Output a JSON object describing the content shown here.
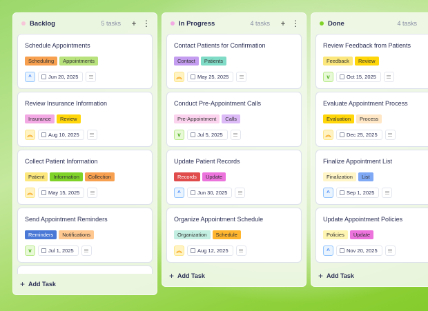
{
  "add_task_label": "Add Task",
  "priority_styles": {
    "high": {
      "icon": "double-chevron-up-icon",
      "glyph": "︽",
      "bg": "#fff3c4",
      "border": "#fde68a",
      "color": "#f59e0b"
    },
    "medium": {
      "icon": "chevron-up-icon",
      "glyph": "^",
      "bg": "#eaf4ff",
      "border": "#93c5fd",
      "color": "#3b82f6"
    },
    "low": {
      "icon": "chevron-down-icon",
      "glyph": "v",
      "bg": "#e8f9d8",
      "border": "#b8ea8a",
      "color": "#4caf1a"
    }
  },
  "columns": [
    {
      "title": "Backlog",
      "count": "5 tasks",
      "dot": "#f7c6d9",
      "partial_card": true,
      "cards": [
        {
          "title": "Schedule Appointments",
          "tags": [
            {
              "label": "Scheduling",
              "bg": "#f7a04f",
              "fg": "#333"
            },
            {
              "label": "Appointments",
              "bg": "#b7e27c",
              "fg": "#333"
            }
          ],
          "priority": "medium",
          "date": "Jun 20, 2025"
        },
        {
          "title": "Review Insurance Information",
          "tags": [
            {
              "label": "Insurance",
              "bg": "#f2a9e4",
              "fg": "#333"
            },
            {
              "label": "Review",
              "bg": "#ffd60a",
              "fg": "#333"
            }
          ],
          "priority": "high",
          "date": "Aug 10, 2025"
        },
        {
          "title": "Collect Patient Information",
          "tags": [
            {
              "label": "Patient",
              "bg": "#fbe77c",
              "fg": "#333"
            },
            {
              "label": "Information",
              "bg": "#7fd228",
              "fg": "#333"
            },
            {
              "label": "Collection",
              "bg": "#f7a04f",
              "fg": "#333"
            }
          ],
          "priority": "high",
          "date": "May 15, 2025"
        },
        {
          "title": "Send Appointment Reminders",
          "tags": [
            {
              "label": "Reminders",
              "bg": "#4a78d6",
              "fg": "#fff"
            },
            {
              "label": "Notifications",
              "bg": "#ffc890",
              "fg": "#333"
            }
          ],
          "priority": "low",
          "date": "Jul 1, 2025"
        }
      ]
    },
    {
      "title": "In Progress",
      "count": "4 tasks",
      "dot": "#f2a9e4",
      "cards": [
        {
          "title": "Contact Patients for Confirmation",
          "tags": [
            {
              "label": "Contact",
              "bg": "#c49df0",
              "fg": "#333"
            },
            {
              "label": "Patients",
              "bg": "#80dcc6",
              "fg": "#333"
            }
          ],
          "priority": "high",
          "date": "May 25, 2025"
        },
        {
          "title": "Conduct Pre-Appointment Calls",
          "tags": [
            {
              "label": "Pre-Appointment",
              "bg": "#fbd3ee",
              "fg": "#333"
            },
            {
              "label": "Calls",
              "bg": "#dcbaf8",
              "fg": "#333"
            }
          ],
          "priority": "low",
          "date": "Jul 5, 2025"
        },
        {
          "title": "Update Patient Records",
          "tags": [
            {
              "label": "Records",
              "bg": "#e04b4b",
              "fg": "#fff"
            },
            {
              "label": "Update",
              "bg": "#ec72dc",
              "fg": "#333"
            }
          ],
          "priority": "medium",
          "date": "Jun 30, 2025"
        },
        {
          "title": "Organize Appointment Schedule",
          "tags": [
            {
              "label": "Organization",
              "bg": "#c2efe1",
              "fg": "#333"
            },
            {
              "label": "Schedule",
              "bg": "#ffb52e",
              "fg": "#333"
            }
          ],
          "priority": "high",
          "date": "Aug 12, 2025"
        }
      ]
    },
    {
      "title": "Done",
      "count": "4 tasks",
      "dot": "#7fd228",
      "cards": [
        {
          "title": "Review Feedback from Patients",
          "tags": [
            {
              "label": "Feedback",
              "bg": "#fbe77c",
              "fg": "#333"
            },
            {
              "label": "Review",
              "bg": "#ffd60a",
              "fg": "#333"
            }
          ],
          "priority": "low",
          "date": "Oct 15, 2025"
        },
        {
          "title": "Evaluate Appointment Process",
          "tags": [
            {
              "label": "Evaluation",
              "bg": "#ffd60a",
              "fg": "#333"
            },
            {
              "label": "Process",
              "bg": "#ffe7c6",
              "fg": "#333"
            }
          ],
          "priority": "high",
          "date": "Dec 25, 2025"
        },
        {
          "title": "Finalize Appointment List",
          "tags": [
            {
              "label": "Finalization",
              "bg": "#fff5c6",
              "fg": "#333"
            },
            {
              "label": "List",
              "bg": "#7fa8f5",
              "fg": "#333"
            }
          ],
          "priority": "medium",
          "date": "Sep 1, 2025"
        },
        {
          "title": "Update Appointment Policies",
          "tags": [
            {
              "label": "Policies",
              "bg": "#fff5b2",
              "fg": "#333"
            },
            {
              "label": "Update",
              "bg": "#ec72dc",
              "fg": "#333"
            }
          ],
          "priority": "medium",
          "date": "Nov 20, 2025"
        }
      ]
    }
  ]
}
